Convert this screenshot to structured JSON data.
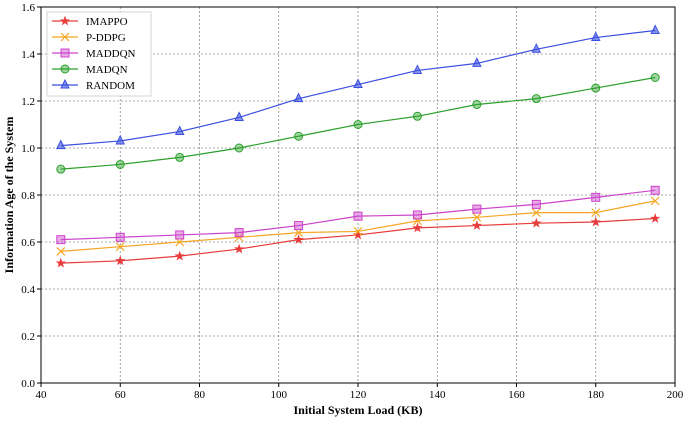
{
  "chart_data": {
    "type": "line",
    "title": "",
    "xlabel": "Initial System Load (KB)",
    "ylabel": "Information Age of the System",
    "xlim": [
      40,
      200
    ],
    "ylim": [
      0,
      1.6
    ],
    "x_ticks": [
      "40",
      "60",
      "80",
      "100",
      "120",
      "140",
      "160",
      "180",
      "200"
    ],
    "y_ticks": [
      "0.0",
      "0.2",
      "0.4",
      "0.6",
      "0.8",
      "1.0",
      "1.2",
      "1.4",
      "1.6"
    ],
    "grid": true,
    "legend_position": "top-left",
    "x": [
      45,
      60,
      75,
      90,
      105,
      120,
      135,
      150,
      165,
      180,
      195
    ],
    "series": [
      {
        "name": "IMAPPO",
        "color": "#e83c3c",
        "marker": "star",
        "values": [
          0.51,
          0.52,
          0.54,
          0.57,
          0.61,
          0.63,
          0.66,
          0.67,
          0.68,
          0.685,
          0.7
        ]
      },
      {
        "name": "P-DDPG",
        "color": "#f5a623",
        "marker": "x",
        "values": [
          0.56,
          0.58,
          0.6,
          0.62,
          0.64,
          0.645,
          0.69,
          0.705,
          0.725,
          0.725,
          0.775
        ]
      },
      {
        "name": "MADDQN",
        "color": "#cc44cc",
        "marker": "square",
        "values": [
          0.61,
          0.62,
          0.63,
          0.64,
          0.67,
          0.71,
          0.715,
          0.74,
          0.76,
          0.79,
          0.82
        ]
      },
      {
        "name": "MADQN",
        "color": "#2ca02c",
        "marker": "circle",
        "values": [
          0.91,
          0.93,
          0.96,
          1.0,
          1.05,
          1.1,
          1.135,
          1.185,
          1.21,
          1.255,
          1.3
        ]
      },
      {
        "name": "RANDOM",
        "color": "#3b4fe0",
        "marker": "triangle",
        "values": [
          1.01,
          1.03,
          1.07,
          1.13,
          1.21,
          1.27,
          1.33,
          1.36,
          1.42,
          1.47,
          1.5
        ]
      }
    ]
  }
}
